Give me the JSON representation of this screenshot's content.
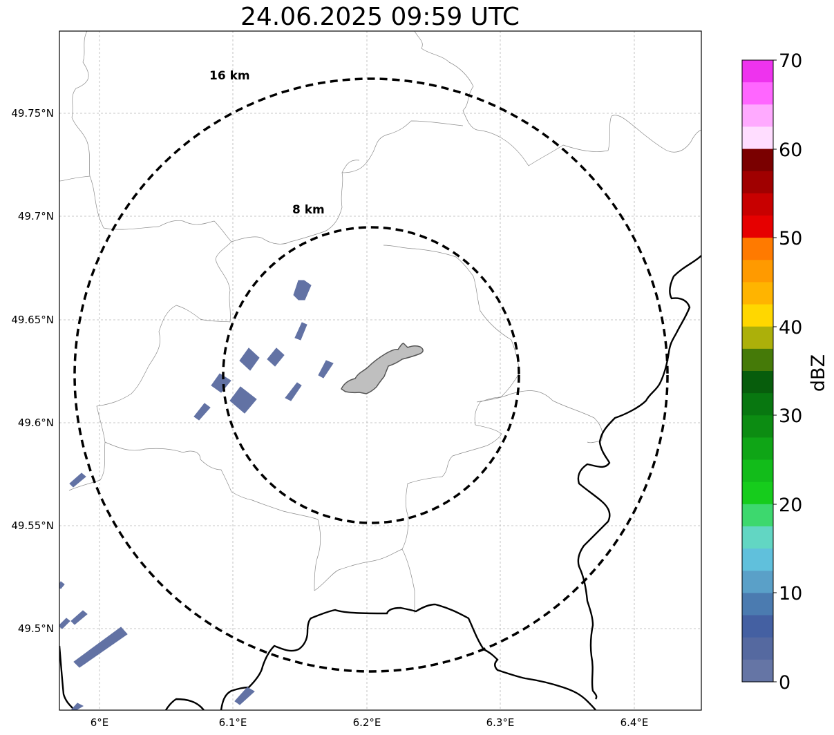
{
  "title": "24.06.2025 09:59 UTC",
  "map": {
    "x_ticks": [
      "6°E",
      "6.1°E",
      "6.2°E",
      "6.3°E",
      "6.4°E"
    ],
    "y_ticks": [
      "49.75°N",
      "49.7°N",
      "49.65°N",
      "49.6°N",
      "49.55°N",
      "49.5°N"
    ],
    "ring_labels": [
      "16 km",
      "8 km"
    ],
    "ring_style": "black dashed",
    "grid": true,
    "echo_color": "#6272a4",
    "city_fill": "#bfbfbf"
  },
  "colorbar": {
    "label": "dBZ",
    "ticks": [
      "70",
      "60",
      "50",
      "40",
      "30",
      "20",
      "10",
      "0"
    ],
    "colors_top_to_bottom": [
      "#ee33ee",
      "#ff66ff",
      "#ffaaff",
      "#ffddff",
      "#7a0000",
      "#a00000",
      "#c80000",
      "#e60000",
      "#ff7a00",
      "#ff9a00",
      "#ffb400",
      "#ffd700",
      "#acb00a",
      "#457a08",
      "#075d0c",
      "#087710",
      "#0c8c12",
      "#0fa516",
      "#12bc1a",
      "#16cc1c",
      "#3dd86e",
      "#62d6c3",
      "#60c0dc",
      "#5aa0c8",
      "#4b7bb0",
      "#4460a2",
      "#5569a0",
      "#6575a5"
    ]
  }
}
